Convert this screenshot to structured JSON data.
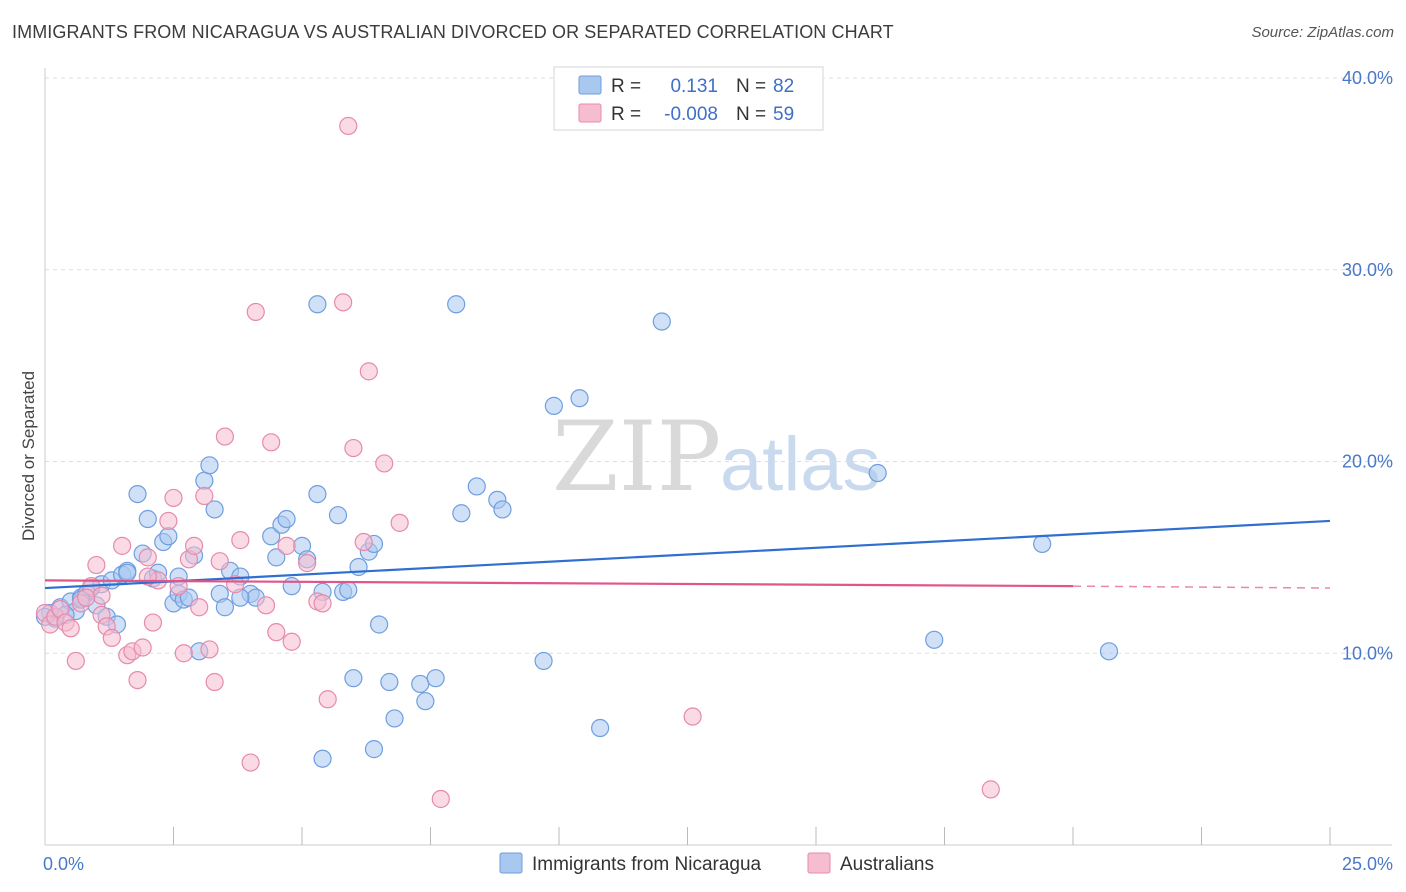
{
  "title": "IMMIGRANTS FROM NICARAGUA VS AUSTRALIAN DIVORCED OR SEPARATED CORRELATION CHART",
  "source": "Source: ZipAtlas.com",
  "watermark": {
    "zip": "ZIP",
    "atlas": "atlas"
  },
  "legend": {
    "r_label": "R =",
    "n_label": "N =",
    "rows": [
      {
        "r": "0.131",
        "n": "82",
        "color": "#a9c8f0",
        "stroke": "#6f9ee0"
      },
      {
        "r": "-0.008",
        "n": "59",
        "color": "#f6bcd0",
        "stroke": "#e68aab"
      }
    ]
  },
  "chart_data": {
    "type": "scatter",
    "xlabel": "",
    "ylabel": "Divorced or Separated",
    "xlim": [
      0,
      25
    ],
    "ylim": [
      0,
      40
    ],
    "x_tick_labels": [
      {
        "value": 0,
        "label": "0.0%"
      },
      {
        "value": 25,
        "label": "25.0%"
      }
    ],
    "y_tick_labels": [
      {
        "value": 10,
        "label": "10.0%"
      },
      {
        "value": 20,
        "label": "20.0%"
      },
      {
        "value": 30,
        "label": "30.0%"
      },
      {
        "value": 40,
        "label": "40.0%"
      }
    ],
    "grid": "horizontal dashed",
    "legend_position": "top-center",
    "series": [
      {
        "name": "Immigrants from Nicaragua",
        "color": "#a9c8f0",
        "stroke": "#6f9ee0",
        "line_color": "#2f6fcf",
        "trend": {
          "x0": 0,
          "y0": 13.4,
          "x1": 25,
          "y1": 16.9
        },
        "points": [
          [
            0.1,
            12.1
          ],
          [
            0.2,
            11.8
          ],
          [
            0.3,
            12.4
          ],
          [
            0.5,
            12.7
          ],
          [
            0.6,
            12.2
          ],
          [
            0.7,
            12.9
          ],
          [
            0.8,
            13.1
          ],
          [
            0.9,
            13.4
          ],
          [
            1.0,
            12.5
          ],
          [
            1.1,
            13.6
          ],
          [
            1.2,
            11.9
          ],
          [
            1.3,
            13.8
          ],
          [
            1.4,
            11.5
          ],
          [
            1.5,
            14.1
          ],
          [
            1.6,
            14.3
          ],
          [
            1.8,
            18.3
          ],
          [
            1.9,
            15.2
          ],
          [
            2.0,
            17.0
          ],
          [
            2.1,
            13.9
          ],
          [
            2.2,
            14.2
          ],
          [
            2.3,
            15.8
          ],
          [
            2.4,
            16.1
          ],
          [
            2.5,
            12.6
          ],
          [
            2.6,
            13.1
          ],
          [
            2.7,
            12.8
          ],
          [
            2.8,
            12.9
          ],
          [
            2.9,
            15.1
          ],
          [
            3.0,
            10.1
          ],
          [
            3.1,
            19.0
          ],
          [
            3.2,
            19.8
          ],
          [
            3.3,
            17.5
          ],
          [
            3.4,
            13.1
          ],
          [
            3.5,
            12.4
          ],
          [
            3.6,
            14.3
          ],
          [
            3.8,
            14.0
          ],
          [
            4.0,
            13.1
          ],
          [
            4.1,
            12.9
          ],
          [
            4.4,
            16.1
          ],
          [
            4.5,
            15.0
          ],
          [
            4.6,
            16.7
          ],
          [
            4.7,
            17.0
          ],
          [
            4.8,
            13.5
          ],
          [
            5.0,
            15.6
          ],
          [
            5.1,
            14.9
          ],
          [
            5.3,
            18.3
          ],
          [
            5.4,
            13.2
          ],
          [
            5.7,
            17.2
          ],
          [
            5.8,
            13.2
          ],
          [
            5.9,
            13.3
          ],
          [
            6.1,
            14.5
          ],
          [
            6.3,
            15.3
          ],
          [
            6.4,
            15.7
          ],
          [
            6.5,
            11.5
          ],
          [
            6.0,
            8.7
          ],
          [
            6.7,
            8.5
          ],
          [
            6.8,
            6.6
          ],
          [
            7.3,
            8.4
          ],
          [
            7.4,
            7.5
          ],
          [
            7.6,
            8.7
          ],
          [
            5.4,
            4.5
          ],
          [
            6.4,
            5.0
          ],
          [
            8.1,
            17.3
          ],
          [
            8.4,
            18.7
          ],
          [
            8.8,
            18.0
          ],
          [
            8.9,
            17.5
          ],
          [
            9.7,
            9.6
          ],
          [
            9.9,
            22.9
          ],
          [
            10.4,
            23.3
          ],
          [
            10.8,
            6.1
          ],
          [
            12.0,
            27.3
          ],
          [
            5.3,
            28.2
          ],
          [
            8.0,
            28.2
          ],
          [
            16.2,
            19.4
          ],
          [
            17.3,
            10.7
          ],
          [
            19.4,
            15.7
          ],
          [
            20.7,
            10.1
          ],
          [
            0.0,
            11.9
          ],
          [
            0.4,
            12.0
          ],
          [
            0.7,
            12.8
          ],
          [
            1.6,
            14.2
          ],
          [
            2.6,
            14.0
          ],
          [
            3.8,
            12.9
          ]
        ]
      },
      {
        "name": "Australians",
        "color": "#f6bcd0",
        "stroke": "#e68aab",
        "line_color": "#e0558a",
        "trend": {
          "x0": 0,
          "y0": 13.8,
          "x1": 20,
          "y1": 13.5
        },
        "trend_dash_end": {
          "x": 25,
          "y": 13.4
        },
        "points": [
          [
            0.0,
            12.1
          ],
          [
            0.1,
            11.5
          ],
          [
            0.2,
            11.9
          ],
          [
            0.3,
            12.3
          ],
          [
            0.4,
            11.6
          ],
          [
            0.5,
            11.3
          ],
          [
            0.6,
            9.6
          ],
          [
            0.7,
            12.6
          ],
          [
            0.9,
            13.5
          ],
          [
            1.0,
            14.6
          ],
          [
            1.1,
            12.0
          ],
          [
            1.2,
            11.4
          ],
          [
            1.3,
            10.8
          ],
          [
            1.5,
            15.6
          ],
          [
            1.6,
            9.9
          ],
          [
            1.7,
            10.1
          ],
          [
            1.8,
            8.6
          ],
          [
            1.9,
            10.3
          ],
          [
            2.0,
            15.0
          ],
          [
            2.1,
            11.6
          ],
          [
            2.2,
            13.8
          ],
          [
            2.4,
            16.9
          ],
          [
            2.5,
            18.1
          ],
          [
            2.6,
            13.5
          ],
          [
            2.7,
            10.0
          ],
          [
            2.8,
            14.9
          ],
          [
            2.9,
            15.6
          ],
          [
            3.0,
            12.4
          ],
          [
            3.1,
            18.2
          ],
          [
            3.2,
            10.2
          ],
          [
            3.3,
            8.5
          ],
          [
            3.4,
            14.8
          ],
          [
            3.5,
            21.3
          ],
          [
            3.7,
            13.6
          ],
          [
            3.8,
            15.9
          ],
          [
            4.0,
            4.3
          ],
          [
            4.1,
            27.8
          ],
          [
            4.3,
            12.5
          ],
          [
            4.4,
            21.0
          ],
          [
            4.5,
            11.1
          ],
          [
            4.7,
            15.6
          ],
          [
            4.8,
            10.6
          ],
          [
            5.1,
            14.7
          ],
          [
            5.3,
            12.7
          ],
          [
            5.4,
            12.6
          ],
          [
            5.5,
            7.6
          ],
          [
            5.8,
            28.3
          ],
          [
            5.9,
            37.5
          ],
          [
            6.0,
            20.7
          ],
          [
            6.2,
            15.8
          ],
          [
            6.3,
            24.7
          ],
          [
            6.6,
            19.9
          ],
          [
            6.9,
            16.8
          ],
          [
            7.7,
            2.4
          ],
          [
            12.6,
            6.7
          ],
          [
            18.4,
            2.9
          ],
          [
            1.1,
            13.0
          ],
          [
            2.0,
            14.0
          ],
          [
            0.8,
            12.9
          ]
        ]
      }
    ]
  }
}
